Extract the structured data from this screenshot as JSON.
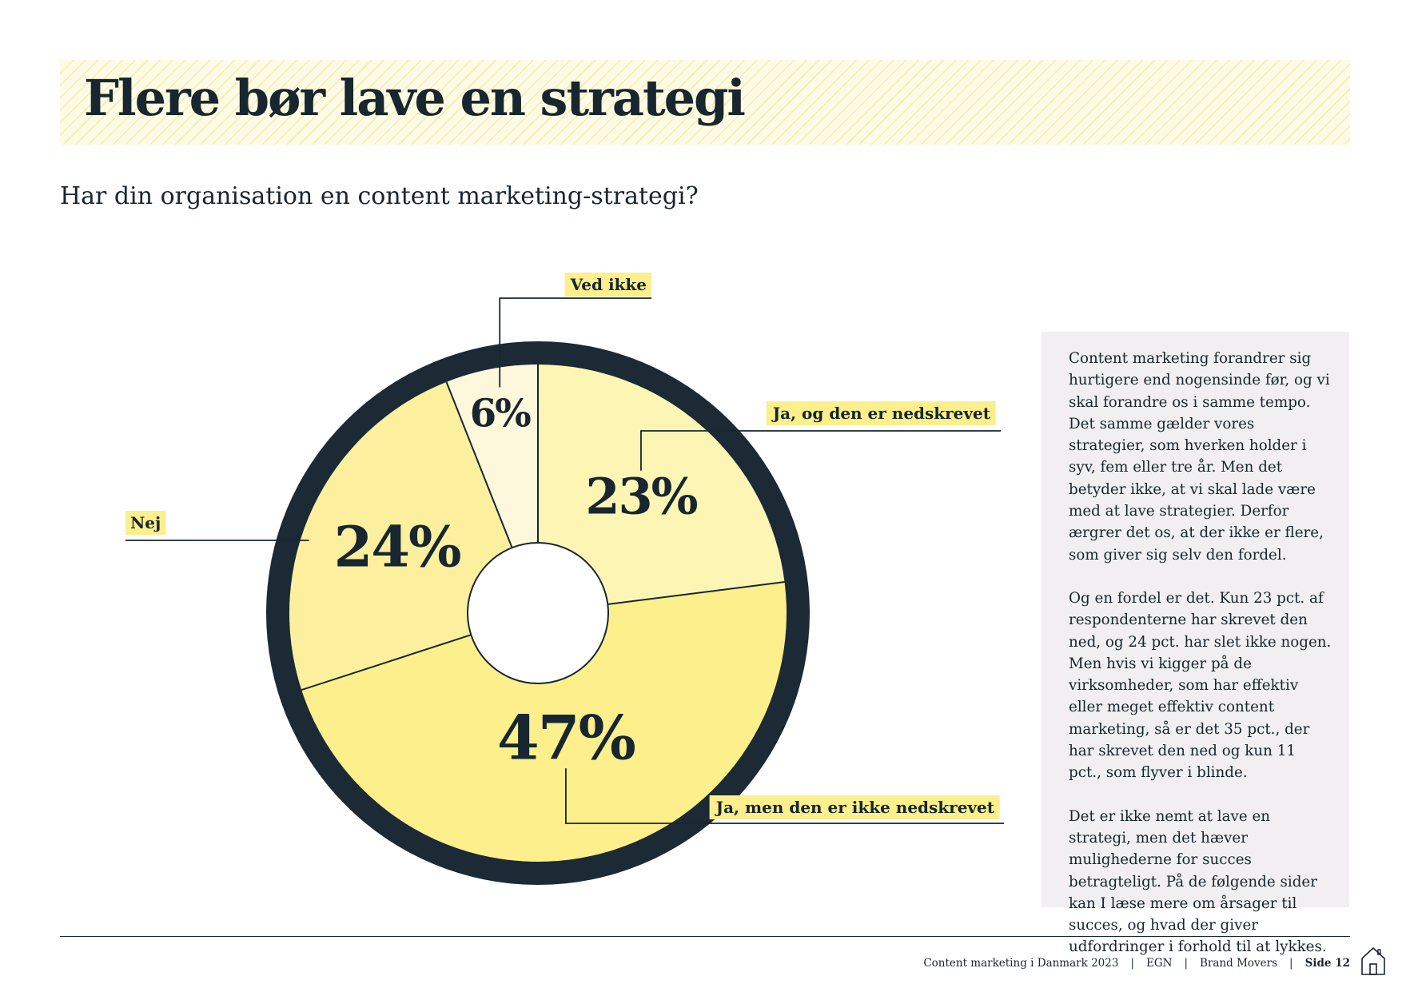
{
  "header": {
    "title": "Flere bør lave en strategi",
    "question": "Har din organisation en content marketing-strategi?"
  },
  "chart_data": {
    "type": "pie",
    "categories": [
      "Ja, og den er nedskrevet",
      "Ja, men den er ikke nedskrevet",
      "Nej",
      "Ved ikke"
    ],
    "values": [
      23,
      47,
      24,
      6
    ],
    "value_labels": [
      "23%",
      "47%",
      "24%",
      "6%"
    ],
    "colors": [
      "#fdf5b4",
      "#fcef8c",
      "#fcf09e",
      "#fdf8db"
    ],
    "ring_color": "#1b2a34",
    "label_bg": "#fcef8c",
    "legend_position": "outside-labels"
  },
  "sidebar": {
    "paragraphs": [
      "Content marketing forandrer sig hurtigere end nogensinde før, og vi skal forandre os i samme tempo. Det samme gælder vores strategier, som hverken holder i syv, fem eller tre år. Men det betyder ikke, at vi skal lade være med at lave strategier. Derfor ærgrer det os, at der ikke er flere, som giver sig selv den fordel.",
      "Og en fordel er det. Kun 23 pct. af respondenterne har skrevet den ned, og 24 pct. har slet ikke nogen. Men hvis vi kigger på de virksomheder, som har effektiv eller meget effektiv content marketing, så er det 35 pct., der har skrevet den ned og kun 11 pct., som flyver i blinde.",
      "Det er ikke nemt at lave en strategi, men det hæver mulighederne for succes betragteligt. På de følgende sider kan I læse mere om årsager til succes, og hvad der giver udfordringer i forhold til at lykkes."
    ]
  },
  "footer": {
    "publication": "Content marketing i Danmark 2023",
    "org1": "EGN",
    "org2": "Brand Movers",
    "page": "Side 12",
    "separator": "|",
    "home_icon": "home-icon"
  }
}
